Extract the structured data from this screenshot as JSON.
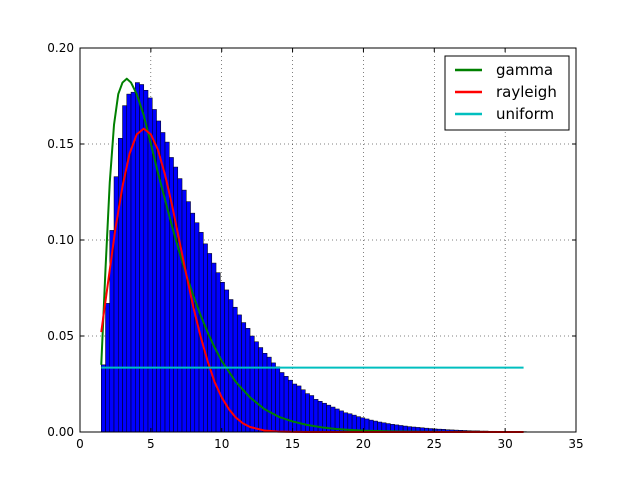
{
  "chart_data": {
    "type": "histogram",
    "xlim": [
      0,
      35
    ],
    "ylim": [
      0,
      0.2
    ],
    "xticks": [
      "0",
      "5",
      "10",
      "15",
      "20",
      "25",
      "30",
      "35"
    ],
    "yticks": [
      "0.00",
      "0.05",
      "0.10",
      "0.15",
      "0.20"
    ],
    "grid": true,
    "legend": {
      "placement": "top-right",
      "entries": [
        {
          "name": "gamma",
          "color": "#008000"
        },
        {
          "name": "rayleigh",
          "color": "#ff0000"
        },
        {
          "name": "uniform",
          "color": "#00bfbf"
        }
      ]
    },
    "histogram": {
      "color": "#0000ff",
      "edge_color": "#000000",
      "bin_edges_start": 1.5,
      "bin_width": 0.3,
      "densities": [
        0.035,
        0.067,
        0.105,
        0.133,
        0.153,
        0.17,
        0.176,
        0.177,
        0.182,
        0.181,
        0.178,
        0.174,
        0.168,
        0.162,
        0.156,
        0.151,
        0.143,
        0.138,
        0.132,
        0.126,
        0.12,
        0.114,
        0.109,
        0.104,
        0.098,
        0.093,
        0.088,
        0.083,
        0.078,
        0.074,
        0.069,
        0.065,
        0.061,
        0.057,
        0.054,
        0.05,
        0.047,
        0.044,
        0.041,
        0.039,
        0.036,
        0.034,
        0.031,
        0.029,
        0.027,
        0.025,
        0.024,
        0.022,
        0.02,
        0.019,
        0.017,
        0.016,
        0.015,
        0.014,
        0.013,
        0.012,
        0.011,
        0.01,
        0.0095,
        0.0088,
        0.008,
        0.0074,
        0.0068,
        0.0062,
        0.0057,
        0.0052,
        0.0048,
        0.0044,
        0.004,
        0.0037,
        0.0034,
        0.0031,
        0.0028,
        0.0026,
        0.0024,
        0.0022,
        0.002,
        0.0018,
        0.0016,
        0.0015,
        0.0014,
        0.0012,
        0.0011,
        0.001,
        0.0009,
        0.0008,
        0.0007,
        0.0006,
        0.0006,
        0.0005,
        0.0005,
        0.0004,
        0.0004,
        0.0003,
        0.0003,
        0.0003,
        0.0002,
        0.0002,
        0.0002,
        0.0002
      ]
    },
    "series": [
      {
        "name": "gamma",
        "color": "#008000",
        "x": [
          1.5,
          1.8,
          2.1,
          2.4,
          2.7,
          3.0,
          3.3,
          3.6,
          4.0,
          4.5,
          5.0,
          5.5,
          6.0,
          6.5,
          7.0,
          7.5,
          8.0,
          8.5,
          9.0,
          9.5,
          10.0,
          11.0,
          12.0,
          13.0,
          14.0,
          15.0,
          16.0,
          17.0,
          18.0,
          19.0,
          20.0,
          22.0,
          24.0,
          26.0,
          28.0,
          30.0,
          31.3
        ],
        "y": [
          0.035,
          0.085,
          0.13,
          0.16,
          0.176,
          0.182,
          0.184,
          0.182,
          0.176,
          0.165,
          0.15,
          0.135,
          0.121,
          0.107,
          0.094,
          0.082,
          0.071,
          0.061,
          0.052,
          0.044,
          0.037,
          0.026,
          0.018,
          0.012,
          0.008,
          0.0055,
          0.0037,
          0.0025,
          0.0016,
          0.0011,
          0.0007,
          0.0003,
          0.00013,
          5e-05,
          2e-05,
          1e-05,
          0.0
        ]
      },
      {
        "name": "rayleigh",
        "color": "#ff0000",
        "x": [
          1.5,
          2.0,
          2.5,
          3.0,
          3.5,
          4.0,
          4.5,
          5.0,
          5.5,
          6.0,
          6.5,
          7.0,
          7.5,
          8.0,
          8.5,
          9.0,
          9.5,
          10.0,
          10.5,
          11.0,
          11.5,
          12.0,
          13.0,
          14.0,
          15.0,
          16.0,
          17.0,
          18.0,
          20.0,
          22.0,
          25.0,
          31.3
        ],
        "y": [
          0.052,
          0.079,
          0.106,
          0.128,
          0.145,
          0.155,
          0.158,
          0.155,
          0.147,
          0.134,
          0.118,
          0.1,
          0.082,
          0.065,
          0.05,
          0.037,
          0.026,
          0.018,
          0.012,
          0.0075,
          0.0045,
          0.0026,
          0.0008,
          0.0002,
          5e-05,
          1e-05,
          0.0,
          0.0,
          0.0,
          0.0,
          0.0,
          0.0
        ]
      },
      {
        "name": "uniform",
        "color": "#00bfbf",
        "x": [
          1.5,
          31.3
        ],
        "y": [
          0.0335,
          0.0335
        ]
      }
    ]
  }
}
